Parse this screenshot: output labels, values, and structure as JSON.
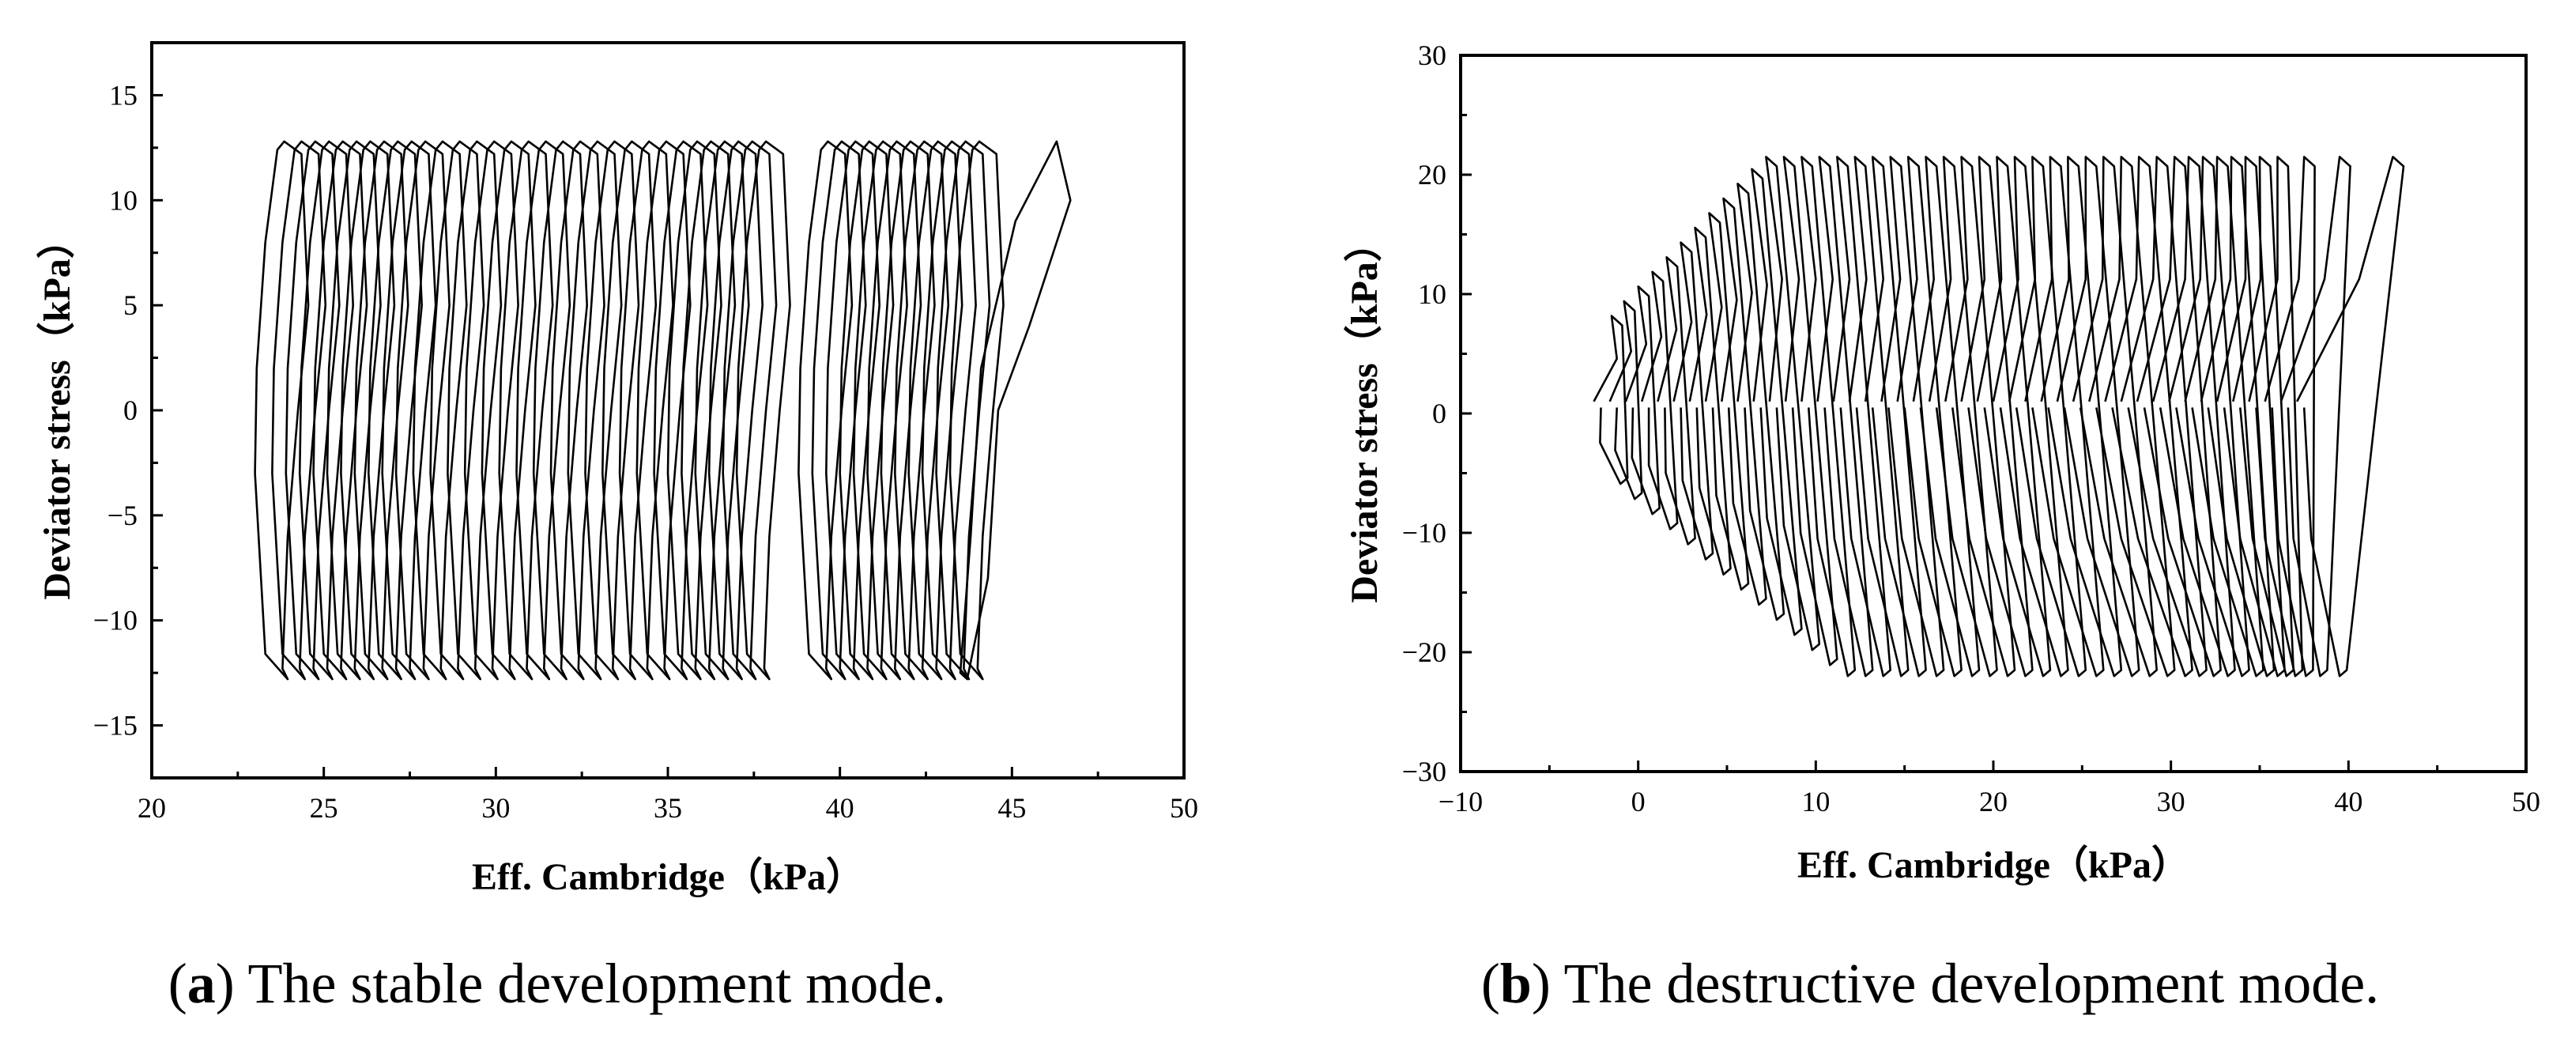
{
  "chart_data": [
    {
      "type": "line",
      "panel_caption_label": "a",
      "caption_text": ") The stable development mode.",
      "xlabel": "Eff. Cambridge（kPa）",
      "ylabel": "Deviator stress（kPa）",
      "xlim": [
        20,
        50
      ],
      "ylim": [
        -17.5,
        17.5
      ],
      "xticks": [
        20,
        25,
        30,
        35,
        40,
        45,
        50
      ],
      "yticks": [
        -15,
        -10,
        -5,
        0,
        5,
        10,
        15
      ],
      "ytick_labels": [
        "−15",
        "−10",
        "−5",
        "0",
        "5",
        "10",
        "15"
      ],
      "grid": false,
      "series_description": "Cyclic stress loops (hysteresis), amplitude about ±12.8 kPa",
      "loops": {
        "y_max": 12.8,
        "y_min": -12.8,
        "x_centers": [
          24.0,
          24.5,
          24.9,
          25.3,
          25.7,
          26.1,
          26.5,
          26.9,
          27.3,
          27.7,
          28.1,
          28.6,
          29.1,
          29.6,
          30.1,
          30.6,
          31.1,
          31.6,
          32.1,
          32.6,
          33.1,
          33.6,
          34.1,
          34.6,
          35.1,
          35.6,
          36.0,
          36.4,
          36.8,
          37.2,
          37.6,
          38.0,
          39.8,
          40.2,
          40.6,
          41.0,
          41.4,
          41.8,
          42.2,
          42.6,
          43.0,
          43.4,
          43.8,
          44.2
        ],
        "half_width": 1.0,
        "last_loop": {
          "x_low": 43.5,
          "x_high": 46.7
        }
      }
    },
    {
      "type": "line",
      "panel_caption_label": "b",
      "caption_text": ") The destructive development mode.",
      "xlabel": "Eff. Cambridge（kPa）",
      "ylabel": "Deviator stress（kPa）",
      "xlim": [
        -10,
        50
      ],
      "ylim": [
        -30,
        30
      ],
      "xticks": [
        -10,
        0,
        10,
        20,
        30,
        40,
        50
      ],
      "yticks": [
        -30,
        -20,
        -10,
        0,
        10,
        20,
        30
      ],
      "xtick_labels": [
        "−10",
        "0",
        "10",
        "20",
        "30",
        "40",
        "50"
      ],
      "ytick_labels": [
        "−30",
        "−20",
        "−10",
        "0",
        "10",
        "20",
        "30"
      ],
      "grid": false,
      "series_description": "Cyclic stress loops converging toward the origin, amplitude about ±21.5 kPa",
      "loops": {
        "y_max": 21.5,
        "y_min": -22.0,
        "top_x": [
          -1.5,
          -0.8,
          0.0,
          0.8,
          1.6,
          2.4,
          3.2,
          4.0,
          4.8,
          5.6,
          6.4,
          7.2,
          8.2,
          9.2,
          10.2,
          11.2,
          12.2,
          13.2,
          14.2,
          15.2,
          16.2,
          17.2,
          18.2,
          19.2,
          20.2,
          21.2,
          22.2,
          23.2,
          24.2,
          25.2,
          26.2,
          27.2,
          28.2,
          29.2,
          30.2,
          31.0,
          31.8,
          32.6,
          33.4,
          34.2,
          35.0,
          36.0,
          37.5,
          39.5,
          42.5
        ],
        "bottom_x": [
          -1.0,
          -0.2,
          0.8,
          1.8,
          2.8,
          3.8,
          4.8,
          5.8,
          6.8,
          7.8,
          8.8,
          9.8,
          10.8,
          11.8,
          12.8,
          13.8,
          14.8,
          15.8,
          16.8,
          17.8,
          18.8,
          19.8,
          20.8,
          21.8,
          22.8,
          23.8,
          24.8,
          25.8,
          26.8,
          27.8,
          28.8,
          29.8,
          30.8,
          31.6,
          32.4,
          33.2,
          34.0,
          34.8,
          35.4,
          36.0,
          36.5,
          37.0,
          37.6,
          38.4,
          39.5
        ],
        "origin_point": {
          "x": -2.5,
          "y": 1.0
        }
      }
    }
  ]
}
